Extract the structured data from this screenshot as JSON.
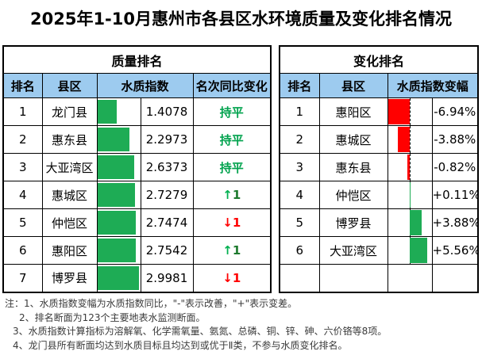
{
  "title": "2025年1-10月惠州市各县区水环境质量及变化排名情况",
  "colors": {
    "header_bg": "#9DCBEF",
    "bar_green": "#1EAC55",
    "bar_red": "#FF0000",
    "text_green": "#00A24D",
    "up_arrow": "#00B050",
    "up_digit": "#1E7A2E",
    "down_red": "#FF0000"
  },
  "quality_table": {
    "title": "质量排名",
    "headers": {
      "rank": "排名",
      "district": "县区",
      "index": "水质指数",
      "change": "名次同比变化"
    },
    "max_index": 2.9981,
    "rows": [
      {
        "rank": "1",
        "district": "龙门县",
        "index": "1.4078",
        "change": "持平",
        "direction": "same"
      },
      {
        "rank": "2",
        "district": "惠东县",
        "index": "2.2973",
        "change": "持平",
        "direction": "same"
      },
      {
        "rank": "3",
        "district": "大亚湾区",
        "index": "2.6373",
        "change": "持平",
        "direction": "same"
      },
      {
        "rank": "4",
        "district": "惠城区",
        "index": "2.7279",
        "change": "↑1",
        "direction": "up"
      },
      {
        "rank": "5",
        "district": "仲恺区",
        "index": "2.7474",
        "change": "↓1",
        "direction": "down"
      },
      {
        "rank": "6",
        "district": "惠阳区",
        "index": "2.7542",
        "change": "↑1",
        "direction": "up"
      },
      {
        "rank": "7",
        "district": "博罗县",
        "index": "2.9981",
        "change": "↓1",
        "direction": "down"
      }
    ]
  },
  "change_table": {
    "title": "变化排名",
    "headers": {
      "rank": "排名",
      "district": "县区",
      "delta": "水质指数变幅"
    },
    "max_abs_delta": 6.94,
    "rows": [
      {
        "rank": "1",
        "district": "惠阳区",
        "delta": "-6.94%",
        "value": -6.94
      },
      {
        "rank": "2",
        "district": "惠城区",
        "delta": "-3.88%",
        "value": -3.88
      },
      {
        "rank": "3",
        "district": "惠东县",
        "delta": "-0.82%",
        "value": -0.82
      },
      {
        "rank": "4",
        "district": "仲恺区",
        "delta": "+0.11%",
        "value": 0.11
      },
      {
        "rank": "5",
        "district": "博罗县",
        "delta": "+3.88%",
        "value": 3.88
      },
      {
        "rank": "6",
        "district": "大亚湾区",
        "delta": "+5.56%",
        "value": 5.56
      },
      {
        "rank": "",
        "district": "",
        "delta": "",
        "value": null
      }
    ]
  },
  "notes": [
    "注：1、水质指数变幅为水质指数同比，\"-\"表示改善，\"+\"表示变差。",
    "2、排名断面为123个主要地表水监测断面。",
    "3、水质指数计算指标为溶解氧、化学需氧量、氨氮、总磷、铜、锌、砷、六价铬等8项。",
    "4、龙门县所有断面均达到水质目标且均达到或优于Ⅱ类，不参与水质变化排名。"
  ],
  "chart_data": [
    {
      "type": "table",
      "title": "质量排名",
      "columns": [
        "排名",
        "县区",
        "水质指数(数据条)",
        "水质指数",
        "名次同比变化"
      ],
      "rows": [
        [
          1,
          "龙门县",
          1.4078,
          "持平"
        ],
        [
          2,
          "惠东县",
          2.2973,
          "持平"
        ],
        [
          3,
          "大亚湾区",
          2.6373,
          "持平"
        ],
        [
          4,
          "惠城区",
          2.7279,
          "↑1"
        ],
        [
          5,
          "仲恺区",
          2.7474,
          "↓1"
        ],
        [
          6,
          "惠阳区",
          2.7542,
          "↑1"
        ],
        [
          7,
          "博罗县",
          2.9981,
          "↓1"
        ]
      ],
      "bar_style": "green solid data bars, left aligned, length proportional to 水质指数, max 2.9981"
    },
    {
      "type": "table",
      "title": "变化排名",
      "columns": [
        "排名",
        "县区",
        "水质指数变幅(数据条)",
        "水质指数变幅"
      ],
      "rows": [
        [
          1,
          "惠阳区",
          -6.94
        ],
        [
          2,
          "惠城区",
          -3.88
        ],
        [
          3,
          "惠东县",
          -0.82
        ],
        [
          4,
          "仲恺区",
          0.11
        ],
        [
          5,
          "博罗县",
          3.88
        ],
        [
          6,
          "大亚湾区",
          5.56
        ]
      ],
      "bar_style": "center dashed zero axis; negative values red bars extending left, positive values green bars extending right, scaled to |6.94| = half cell"
    }
  ]
}
